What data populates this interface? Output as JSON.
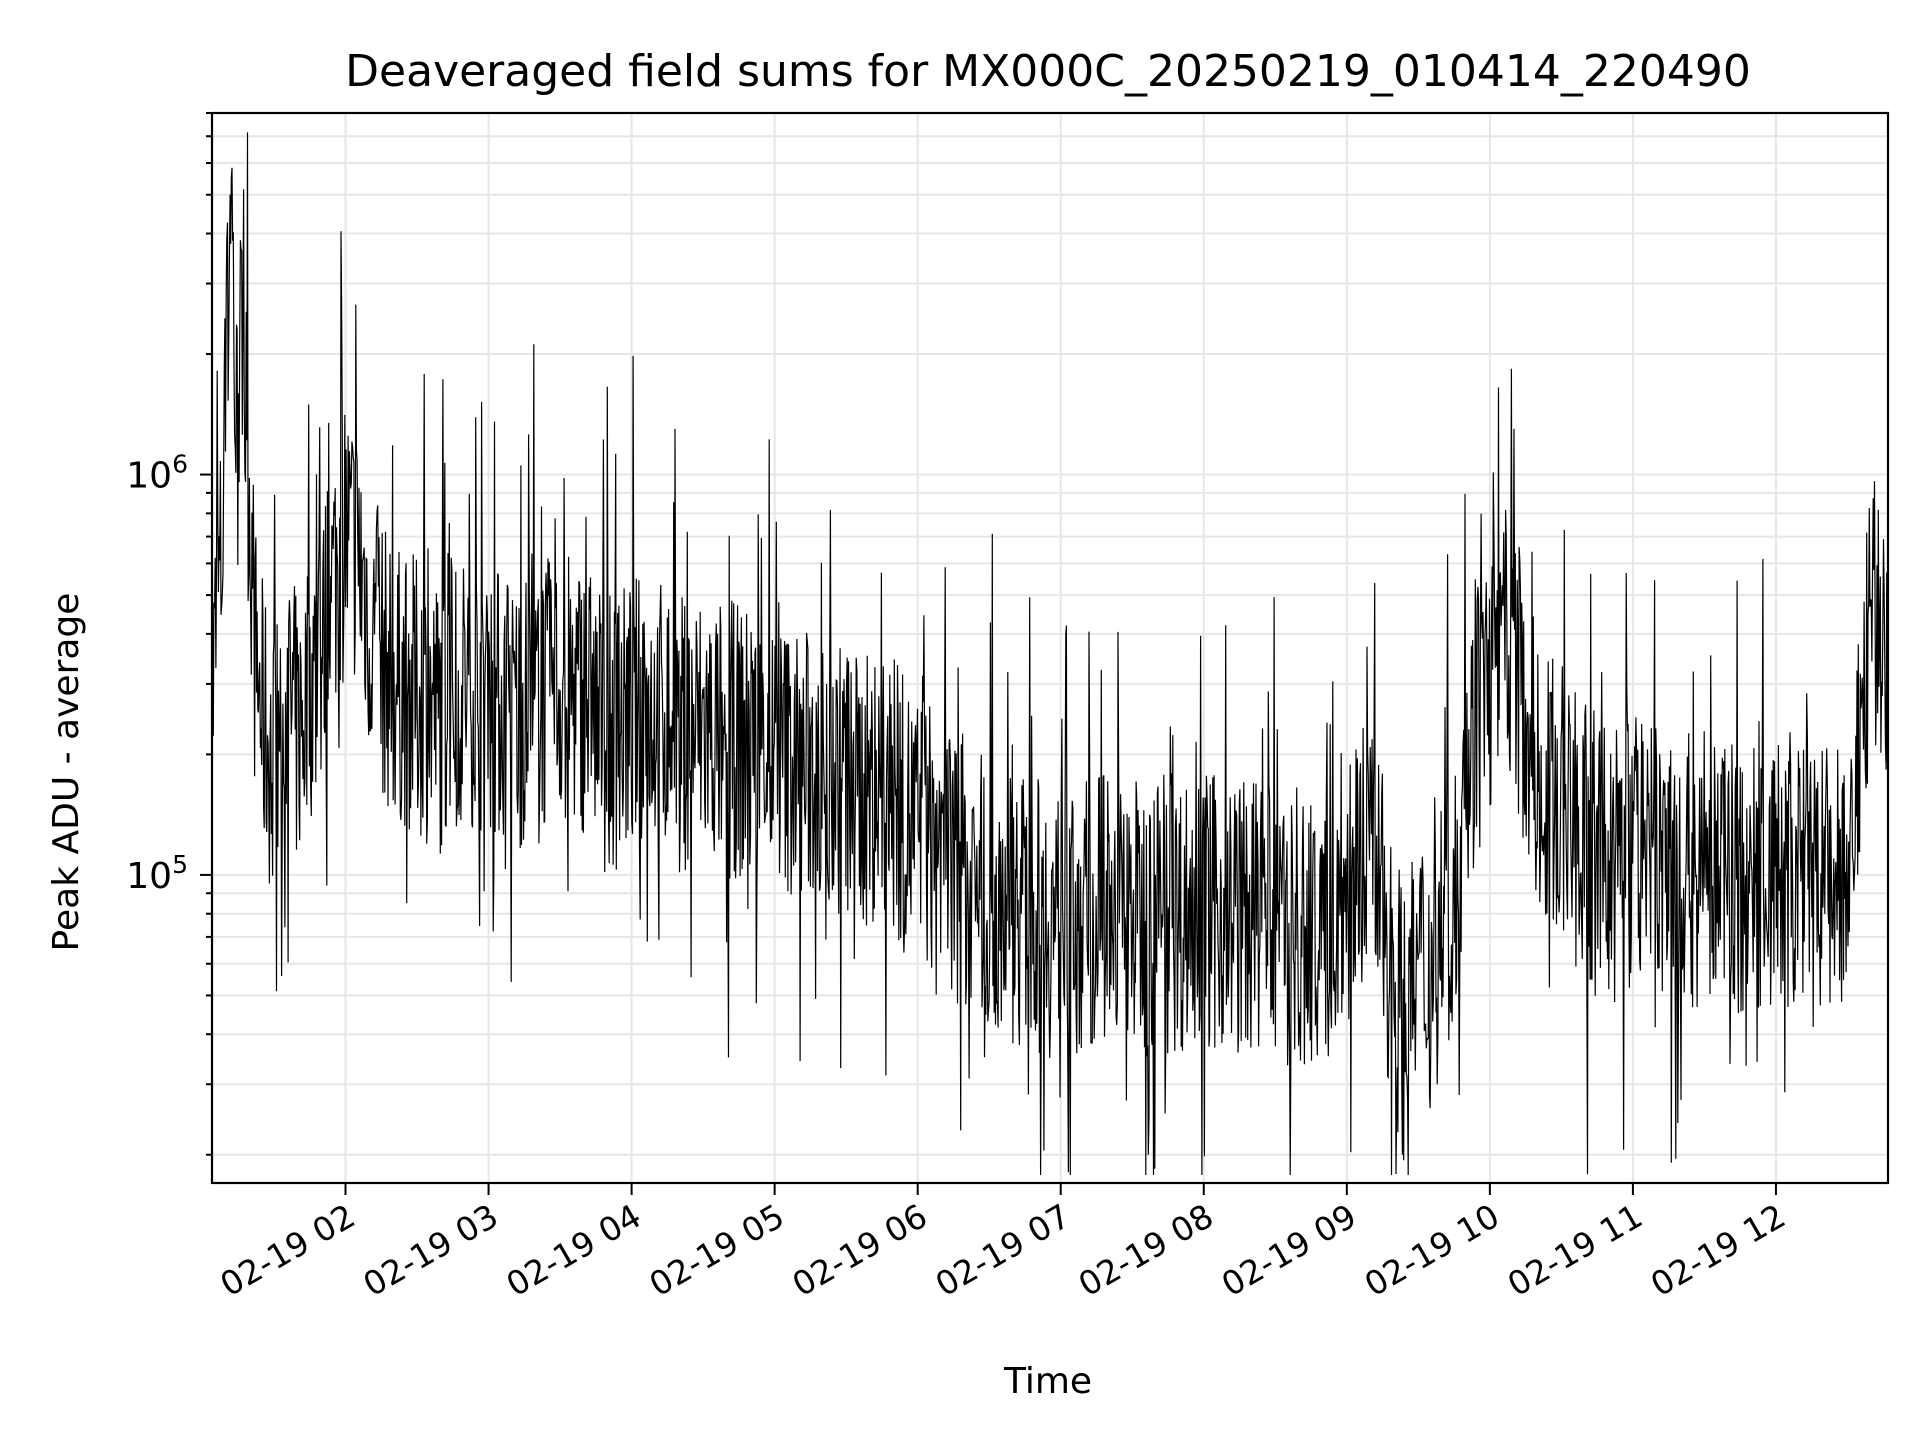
{
  "chart_data": {
    "type": "line",
    "title": "Deaveraged field sums for MX000C_20250219_010414_220490",
    "xlabel": "Time",
    "ylabel": "Peak ADU - average",
    "y_scale": "log",
    "ylim": [
      17000,
      8000000
    ],
    "xlim": [
      "2025-02-19 01:04",
      "2025-02-19 12:47"
    ],
    "grid": true,
    "x_ticks": [
      {
        "value": "2025-02-19 02:00",
        "label": "02-19 02"
      },
      {
        "value": "2025-02-19 03:00",
        "label": "02-19 03"
      },
      {
        "value": "2025-02-19 04:00",
        "label": "02-19 04"
      },
      {
        "value": "2025-02-19 05:00",
        "label": "02-19 05"
      },
      {
        "value": "2025-02-19 06:00",
        "label": "02-19 06"
      },
      {
        "value": "2025-02-19 07:00",
        "label": "02-19 07"
      },
      {
        "value": "2025-02-19 08:00",
        "label": "02-19 08"
      },
      {
        "value": "2025-02-19 09:00",
        "label": "02-19 09"
      },
      {
        "value": "2025-02-19 10:00",
        "label": "02-19 10"
      },
      {
        "value": "2025-02-19 11:00",
        "label": "02-19 11"
      },
      {
        "value": "2025-02-19 12:00",
        "label": "02-19 12"
      }
    ],
    "y_ticks": [
      {
        "value": 100000,
        "base": "10",
        "exp": "5"
      },
      {
        "value": 1000000,
        "base": "10",
        "exp": "6"
      }
    ],
    "series": [
      {
        "color": "#000000",
        "points": [
          [
            "2025-02-19 01:04",
            250000
          ],
          [
            "2025-02-19 01:06",
            450000
          ],
          [
            "2025-02-19 01:08",
            600000
          ],
          [
            "2025-02-19 01:10",
            1500000
          ],
          [
            "2025-02-19 01:12",
            6500000
          ],
          [
            "2025-02-19 01:14",
            1200000
          ],
          [
            "2025-02-19 01:16",
            2000000
          ],
          [
            "2025-02-19 01:18",
            1500000
          ],
          [
            "2025-02-19 01:20",
            800000
          ],
          [
            "2025-02-19 01:22",
            350000
          ],
          [
            "2025-02-19 01:25",
            250000
          ],
          [
            "2025-02-19 01:30",
            180000
          ],
          [
            "2025-02-19 01:35",
            300000
          ],
          [
            "2025-02-19 01:40",
            220000
          ],
          [
            "2025-02-19 01:45",
            300000
          ],
          [
            "2025-02-19 01:50",
            350000
          ],
          [
            "2025-02-19 01:55",
            550000
          ],
          [
            "2025-02-19 02:00",
            700000
          ],
          [
            "2025-02-19 02:05",
            650000
          ],
          [
            "2025-02-19 02:10",
            450000
          ],
          [
            "2025-02-19 02:15",
            350000
          ],
          [
            "2025-02-19 02:20",
            300000
          ],
          [
            "2025-02-19 02:30",
            280000
          ],
          [
            "2025-02-19 02:40",
            250000
          ],
          [
            "2025-02-19 02:50",
            300000
          ],
          [
            "2025-02-19 03:00",
            280000
          ],
          [
            "2025-02-19 03:10",
            250000
          ],
          [
            "2025-02-19 03:20",
            270000
          ],
          [
            "2025-02-19 03:30",
            290000
          ],
          [
            "2025-02-19 03:40",
            280000
          ],
          [
            "2025-02-19 03:50",
            220000
          ],
          [
            "2025-02-19 04:00",
            250000
          ],
          [
            "2025-02-19 04:10",
            260000
          ],
          [
            "2025-02-19 04:20",
            230000
          ],
          [
            "2025-02-19 04:30",
            230000
          ],
          [
            "2025-02-19 04:40",
            220000
          ],
          [
            "2025-02-19 04:50",
            210000
          ],
          [
            "2025-02-19 05:00",
            200000
          ],
          [
            "2025-02-19 05:10",
            190000
          ],
          [
            "2025-02-19 05:20",
            180000
          ],
          [
            "2025-02-19 05:30",
            170000
          ],
          [
            "2025-02-19 05:40",
            160000
          ],
          [
            "2025-02-19 05:50",
            150000
          ],
          [
            "2025-02-19 06:00",
            130000
          ],
          [
            "2025-02-19 06:10",
            120000
          ],
          [
            "2025-02-19 06:20",
            100000
          ],
          [
            "2025-02-19 06:30",
            90000
          ],
          [
            "2025-02-19 06:40",
            85000
          ],
          [
            "2025-02-19 06:50",
            80000
          ],
          [
            "2025-02-19 07:00",
            75000
          ],
          [
            "2025-02-19 07:10",
            80000
          ],
          [
            "2025-02-19 07:20",
            85000
          ],
          [
            "2025-02-19 07:30",
            80000
          ],
          [
            "2025-02-19 07:40",
            78000
          ],
          [
            "2025-02-19 07:50",
            80000
          ],
          [
            "2025-02-19 08:00",
            82000
          ],
          [
            "2025-02-19 08:10",
            80000
          ],
          [
            "2025-02-19 08:20",
            78000
          ],
          [
            "2025-02-19 08:30",
            75000
          ],
          [
            "2025-02-19 08:40",
            70000
          ],
          [
            "2025-02-19 08:50",
            70000
          ],
          [
            "2025-02-19 09:00",
            90000
          ],
          [
            "2025-02-19 09:05",
            120000
          ],
          [
            "2025-02-19 09:10",
            110000
          ],
          [
            "2025-02-19 09:15",
            80000
          ],
          [
            "2025-02-19 09:20",
            55000
          ],
          [
            "2025-02-19 09:25",
            40000
          ],
          [
            "2025-02-19 09:30",
            60000
          ],
          [
            "2025-02-19 09:35",
            55000
          ],
          [
            "2025-02-19 09:40",
            75000
          ],
          [
            "2025-02-19 09:45",
            100000
          ],
          [
            "2025-02-19 09:50",
            180000
          ],
          [
            "2025-02-19 09:55",
            250000
          ],
          [
            "2025-02-19 10:00",
            300000
          ],
          [
            "2025-02-19 10:05",
            400000
          ],
          [
            "2025-02-19 10:10",
            350000
          ],
          [
            "2025-02-19 10:15",
            250000
          ],
          [
            "2025-02-19 10:20",
            180000
          ],
          [
            "2025-02-19 10:30",
            150000
          ],
          [
            "2025-02-19 10:40",
            120000
          ],
          [
            "2025-02-19 10:50",
            110000
          ],
          [
            "2025-02-19 11:00",
            115000
          ],
          [
            "2025-02-19 11:10",
            110000
          ],
          [
            "2025-02-19 11:20",
            100000
          ],
          [
            "2025-02-19 11:30",
            105000
          ],
          [
            "2025-02-19 11:40",
            100000
          ],
          [
            "2025-02-19 11:50",
            95000
          ],
          [
            "2025-02-19 12:00",
            100000
          ],
          [
            "2025-02-19 12:10",
            100000
          ],
          [
            "2025-02-19 12:20",
            95000
          ],
          [
            "2025-02-19 12:30",
            100000
          ],
          [
            "2025-02-19 12:35",
            200000
          ],
          [
            "2025-02-19 12:40",
            450000
          ],
          [
            "2025-02-19 12:47",
            400000
          ]
        ]
      }
    ]
  }
}
